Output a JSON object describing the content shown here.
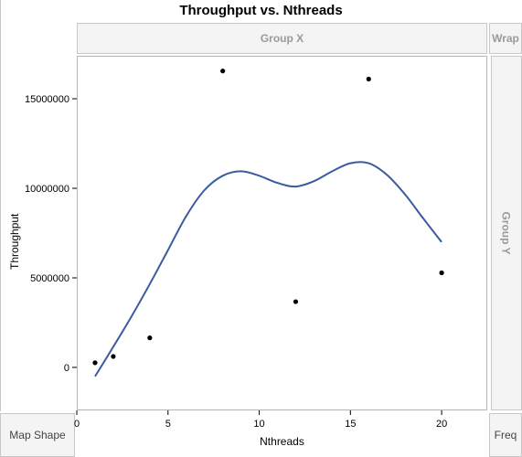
{
  "chart_data": {
    "type": "scatter",
    "title": "Throughput vs. Nthreads",
    "xlabel": "Nthreads",
    "ylabel": "Throughput",
    "xlim": [
      0,
      22.5
    ],
    "ylim": [
      -2400000,
      17400000
    ],
    "x_ticks": [
      0,
      5,
      10,
      15,
      20
    ],
    "y_ticks": [
      0,
      5000000,
      10000000,
      15000000
    ],
    "y_tick_labels": [
      "0",
      "5000000",
      "10000000",
      "15000000"
    ],
    "points": [
      {
        "x": 1,
        "y": 260000
      },
      {
        "x": 2,
        "y": 610000
      },
      {
        "x": 4,
        "y": 1650000
      },
      {
        "x": 8,
        "y": 16550000
      },
      {
        "x": 12,
        "y": 3670000
      },
      {
        "x": 16,
        "y": 16100000
      },
      {
        "x": 20,
        "y": 5280000
      }
    ],
    "smoother": {
      "x": [
        1,
        2,
        3,
        4,
        5,
        6,
        7,
        8,
        9,
        10,
        11,
        12,
        13,
        14,
        15,
        16,
        17,
        18,
        19,
        20
      ],
      "y": [
        -500000,
        1150000,
        2850000,
        4650000,
        6550000,
        8450000,
        9900000,
        10700000,
        10950000,
        10700000,
        10300000,
        10100000,
        10400000,
        10950000,
        11400000,
        11400000,
        10750000,
        9650000,
        8300000,
        7000000
      ]
    },
    "point_color": "#000000",
    "line_color": "#3a5ba0",
    "grid": false
  },
  "panels": {
    "group_x": "Group X",
    "wrap": "Wrap",
    "group_y": "Group Y",
    "map_shape": "Map Shape",
    "freq": "Freq"
  }
}
